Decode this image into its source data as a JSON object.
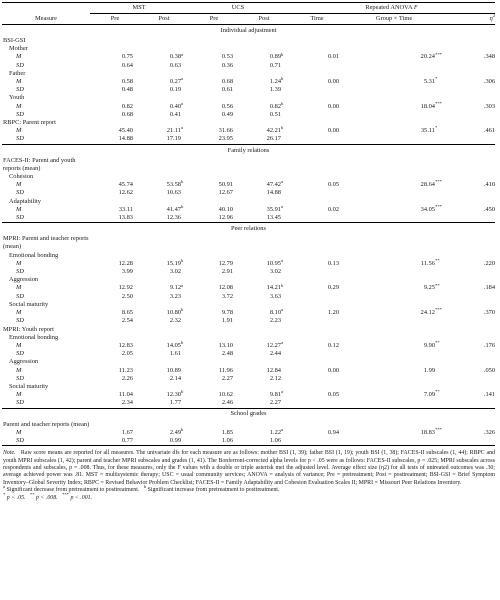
{
  "header": {
    "measure": "Measure",
    "mst": "MST",
    "ucs": "UCS",
    "anova": "Repeated ANOVA",
    "anova_f": "F",
    "pre": "Pre",
    "post": "Post",
    "time": "Time",
    "group_time": "Group × Time",
    "eta": "η",
    "eta_sup": "2"
  },
  "sections": [
    {
      "title": "Individual adjustment",
      "groups": [
        {
          "label": "BSI-GSI",
          "items": [
            {
              "label": "Mother",
              "rows": [
                {
                  "stat": "M",
                  "mst_pre": "0.75",
                  "mst_post": "0.38",
                  "mst_post_sup": "a",
                  "ucs_pre": "0.53",
                  "ucs_post": "0.89",
                  "ucs_post_sup": "b",
                  "time": "0.01",
                  "gxt": "20.24",
                  "gxt_sup": "***",
                  "eta": ".348"
                },
                {
                  "stat": "SD",
                  "mst_pre": "0.64",
                  "mst_post": "0.63",
                  "ucs_pre": "0.36",
                  "ucs_post": "0.71"
                }
              ]
            },
            {
              "label": "Father",
              "rows": [
                {
                  "stat": "M",
                  "mst_pre": "0.58",
                  "mst_post": "0.27",
                  "mst_post_sup": "a",
                  "ucs_pre": "0.68",
                  "ucs_post": "1.24",
                  "ucs_post_sup": "b",
                  "time": "0.00",
                  "gxt": "5.31",
                  "gxt_sup": "*",
                  "eta": ".306"
                },
                {
                  "stat": "SD",
                  "mst_pre": "0.48",
                  "mst_post": "0.19",
                  "ucs_pre": "0.61",
                  "ucs_post": "1.39"
                }
              ]
            },
            {
              "label": "Youth",
              "rows": [
                {
                  "stat": "M",
                  "mst_pre": "0.82",
                  "mst_post": "0.40",
                  "mst_post_sup": "a",
                  "ucs_pre": "0.56",
                  "ucs_post": "0.82",
                  "ucs_post_sup": "b",
                  "time": "0.00",
                  "gxt": "18.04",
                  "gxt_sup": "***",
                  "eta": ".303"
                },
                {
                  "stat": "SD",
                  "mst_pre": "0.68",
                  "mst_post": "0.41",
                  "ucs_pre": "0.49",
                  "ucs_post": "0.51"
                }
              ]
            }
          ]
        },
        {
          "label": "RBPC: Parent report",
          "items": [
            {
              "label": "",
              "rows": [
                {
                  "stat": "M",
                  "mst_pre": "45.40",
                  "mst_post": "21.11",
                  "mst_post_sup": "a",
                  "ucs_pre": "31.66",
                  "ucs_post": "42.21",
                  "ucs_post_sup": "b",
                  "time": "0.00",
                  "gxt": "35.11",
                  "gxt_sup": "*",
                  "eta": ".461"
                },
                {
                  "stat": "SD",
                  "mst_pre": "14.88",
                  "mst_post": "17.19",
                  "ucs_pre": "23.95",
                  "ucs_post": "26.17"
                }
              ]
            }
          ]
        }
      ]
    },
    {
      "title": "Family relations",
      "groups": [
        {
          "label": "FACES-II: Parent and youth reports (mean)",
          "items": [
            {
              "label": "Cohesion",
              "rows": [
                {
                  "stat": "M",
                  "mst_pre": "45.74",
                  "mst_post": "53.58",
                  "mst_post_sup": "b",
                  "ucs_pre": "50.91",
                  "ucs_post": "47.42",
                  "ucs_post_sup": "a",
                  "time": "0.05",
                  "gxt": "28.64",
                  "gxt_sup": "***",
                  "eta": ".410"
                },
                {
                  "stat": "SD",
                  "mst_pre": "12.62",
                  "mst_post": "10.63",
                  "ucs_pre": "12.67",
                  "ucs_post": "14.88"
                }
              ]
            },
            {
              "label": "Adaptability",
              "rows": [
                {
                  "stat": "M",
                  "mst_pre": "33.11",
                  "mst_post": "41.47",
                  "mst_post_sup": "b",
                  "ucs_pre": "40.10",
                  "ucs_post": "35.91",
                  "ucs_post_sup": "a",
                  "time": "0.02",
                  "gxt": "34.05",
                  "gxt_sup": "***",
                  "eta": ".450"
                },
                {
                  "stat": "SD",
                  "mst_pre": "13.83",
                  "mst_post": "12.36",
                  "ucs_pre": "12.96",
                  "ucs_post": "13.45"
                }
              ]
            }
          ]
        }
      ]
    },
    {
      "title": "Peer relations",
      "groups": [
        {
          "label": "MPRI: Parent and teacher reports (mean)",
          "items": [
            {
              "label": "Emotional bonding",
              "rows": [
                {
                  "stat": "M",
                  "mst_pre": "12.28",
                  "mst_post": "15.19",
                  "mst_post_sup": "b",
                  "ucs_pre": "12.79",
                  "ucs_post": "10.95",
                  "ucs_post_sup": "a",
                  "time": "0.13",
                  "gxt": "11.56",
                  "gxt_sup": "**",
                  "eta": ".220"
                },
                {
                  "stat": "SD",
                  "mst_pre": "3.99",
                  "mst_post": "3.02",
                  "ucs_pre": "2.91",
                  "ucs_post": "3.02"
                }
              ]
            },
            {
              "label": "Aggression",
              "rows": [
                {
                  "stat": "M",
                  "mst_pre": "12.92",
                  "mst_post": "9.12",
                  "mst_post_sup": "a",
                  "ucs_pre": "12.08",
                  "ucs_post": "14.21",
                  "ucs_post_sup": "b",
                  "time": "0.29",
                  "gxt": "9.25",
                  "gxt_sup": "**",
                  "eta": ".184"
                },
                {
                  "stat": "SD",
                  "mst_pre": "2.50",
                  "mst_post": "3.23",
                  "ucs_pre": "3.72",
                  "ucs_post": "3.63"
                }
              ]
            },
            {
              "label": "Social maturity",
              "rows": [
                {
                  "stat": "M",
                  "mst_pre": "8.65",
                  "mst_post": "10.80",
                  "mst_post_sup": "b",
                  "ucs_pre": "9.78",
                  "ucs_post": "8.10",
                  "ucs_post_sup": "a",
                  "time": "1.20",
                  "gxt": "24.12",
                  "gxt_sup": "***",
                  "eta": ".370"
                },
                {
                  "stat": "SD",
                  "mst_pre": "2.54",
                  "mst_post": "2.32",
                  "ucs_pre": "1.91",
                  "ucs_post": "2.23"
                }
              ]
            }
          ]
        },
        {
          "label": "MPRI: Youth report",
          "items": [
            {
              "label": "Emotional bonding",
              "rows": [
                {
                  "stat": "M",
                  "mst_pre": "12.83",
                  "mst_post": "14.05",
                  "mst_post_sup": "b",
                  "ucs_pre": "13.10",
                  "ucs_post": "12.27",
                  "ucs_post_sup": "a",
                  "time": "0.12",
                  "gxt": "9.90",
                  "gxt_sup": "**",
                  "eta": ".176"
                },
                {
                  "stat": "SD",
                  "mst_pre": "2.05",
                  "mst_post": "1.61",
                  "ucs_pre": "2.48",
                  "ucs_post": "2.44"
                }
              ]
            },
            {
              "label": "Aggression",
              "rows": [
                {
                  "stat": "M",
                  "mst_pre": "11.23",
                  "mst_post": "10.89",
                  "ucs_pre": "11.96",
                  "ucs_post": "12.84",
                  "time": "0.00",
                  "gxt": "1.99",
                  "eta": ".050"
                },
                {
                  "stat": "SD",
                  "mst_pre": "2.26",
                  "mst_post": "2.14",
                  "ucs_pre": "2.27",
                  "ucs_post": "2.12"
                }
              ]
            },
            {
              "label": "Social maturity",
              "rows": [
                {
                  "stat": "M",
                  "mst_pre": "11.04",
                  "mst_post": "12.30",
                  "mst_post_sup": "b",
                  "ucs_pre": "10.62",
                  "ucs_post": "9.81",
                  "ucs_post_sup": "a",
                  "time": "0.05",
                  "gxt": "7.09",
                  "gxt_sup": "**",
                  "eta": ".141"
                },
                {
                  "stat": "SD",
                  "mst_pre": "2.34",
                  "mst_post": "1.77",
                  "ucs_pre": "2.46",
                  "ucs_post": "2.27"
                }
              ]
            }
          ]
        }
      ]
    },
    {
      "title": "School grades",
      "groups": [
        {
          "label": "Parent and teacher reports (mean)",
          "items": [
            {
              "label": "",
              "rows": [
                {
                  "stat": "M",
                  "mst_pre": "1.67",
                  "mst_post": "2.49",
                  "mst_post_sup": "b",
                  "ucs_pre": "1.85",
                  "ucs_post": "1.22",
                  "ucs_post_sup": "a",
                  "time": "0.94",
                  "gxt": "18.83",
                  "gxt_sup": "***",
                  "eta": ".326"
                },
                {
                  "stat": "SD",
                  "mst_pre": "0.77",
                  "mst_post": "0.99",
                  "ucs_pre": "1.06",
                  "ucs_post": "1.06"
                }
              ]
            }
          ]
        }
      ]
    }
  ],
  "notes": {
    "note_label": "Note.",
    "note_text": "Raw score means are reported for all measures. The univariate dfs for each measure are as follows: mother BSI (1, 39); father BSI (1, 19); youth BSI (1, 38); FACES-II subscales (1, 44); RBPC and youth MPRI subscales (1, 42); parent and teacher MPRI subscales and grades (1, 41). The Bonferroni-corrected alpha levels for p < .05 were as follows: FACES-II subscales, p = .025; MPRI subscales across respondents and subscales, p = .008. Thus, for these measures, only the F values with a double or triple asterisk met the adjusted level. Average effect size (η2) for all tests of untreated outcomes was .30; average achieved power was .81. MST = multisystemic therapy; USC = usual community services; ANOVA = analysis of variance; Pre = pretreatment; Post = posttreatment; BSI-GSI = Brief Symptom Inventory–Global Severity Index; RBPC = Revised Behavior Problem Checklist; FACES-II = Family Adaptability and Cohesion Evaluation Scales II; MPRI = Missouri Peer Relations Inventory.",
    "footnote_a": "Significant decrease from pretreatment to posttreatment.",
    "footnote_b": "Significant increase from pretreatment to posttreatment.",
    "sig1": "p < .05.",
    "sig2": "p < .008.",
    "sig3": "p < .001."
  }
}
